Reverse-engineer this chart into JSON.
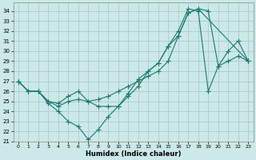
{
  "xlabel": "Humidex (Indice chaleur)",
  "bg_color": "#cce8e8",
  "grid_color": "#aacccc",
  "line_color": "#1a7a6e",
  "xlim": [
    -0.5,
    23.5
  ],
  "ylim": [
    21,
    34.8
  ],
  "yticks": [
    21,
    22,
    23,
    24,
    25,
    26,
    27,
    28,
    29,
    30,
    31,
    32,
    33,
    34
  ],
  "xticks": [
    0,
    1,
    2,
    3,
    4,
    5,
    6,
    7,
    8,
    9,
    10,
    11,
    12,
    13,
    14,
    15,
    16,
    17,
    18,
    19,
    20,
    21,
    22,
    23
  ],
  "line1_x": [
    0,
    1,
    2,
    3,
    4,
    5,
    6,
    7,
    8,
    9,
    10,
    11,
    12,
    13,
    14,
    15,
    16,
    17,
    18,
    19,
    20,
    21,
    22,
    23
  ],
  "line1_y": [
    27,
    26,
    26,
    25,
    24.5,
    25,
    25.2,
    25.0,
    25.2,
    25.5,
    26,
    26.5,
    27,
    27.5,
    28,
    29,
    31.5,
    33.8,
    34.2,
    34.0,
    28.5,
    29.0,
    29.5,
    29
  ],
  "line2_x": [
    0,
    1,
    2,
    3,
    4,
    5,
    6,
    7,
    8,
    9,
    10,
    11,
    12,
    13,
    14,
    15,
    16,
    17,
    18,
    23
  ],
  "line2_y": [
    27,
    26,
    26,
    25,
    24.8,
    25.5,
    26,
    25,
    24.5,
    24.5,
    24.5,
    25.5,
    26.5,
    28,
    28.8,
    30.5,
    31.5,
    33.8,
    34.2,
    29
  ],
  "line3_x": [
    0,
    1,
    2,
    3,
    4,
    5,
    6,
    7,
    8,
    9,
    10,
    11,
    12,
    13,
    14,
    15,
    16,
    17,
    18,
    19,
    20,
    21,
    22,
    23
  ],
  "line3_y": [
    27,
    26,
    26,
    24.8,
    24,
    23,
    22.5,
    21.2,
    22.2,
    23.5,
    24.5,
    25.8,
    27.2,
    28.0,
    28.8,
    30.5,
    32,
    34.2,
    34.0,
    26,
    28.5,
    30,
    31,
    29
  ]
}
